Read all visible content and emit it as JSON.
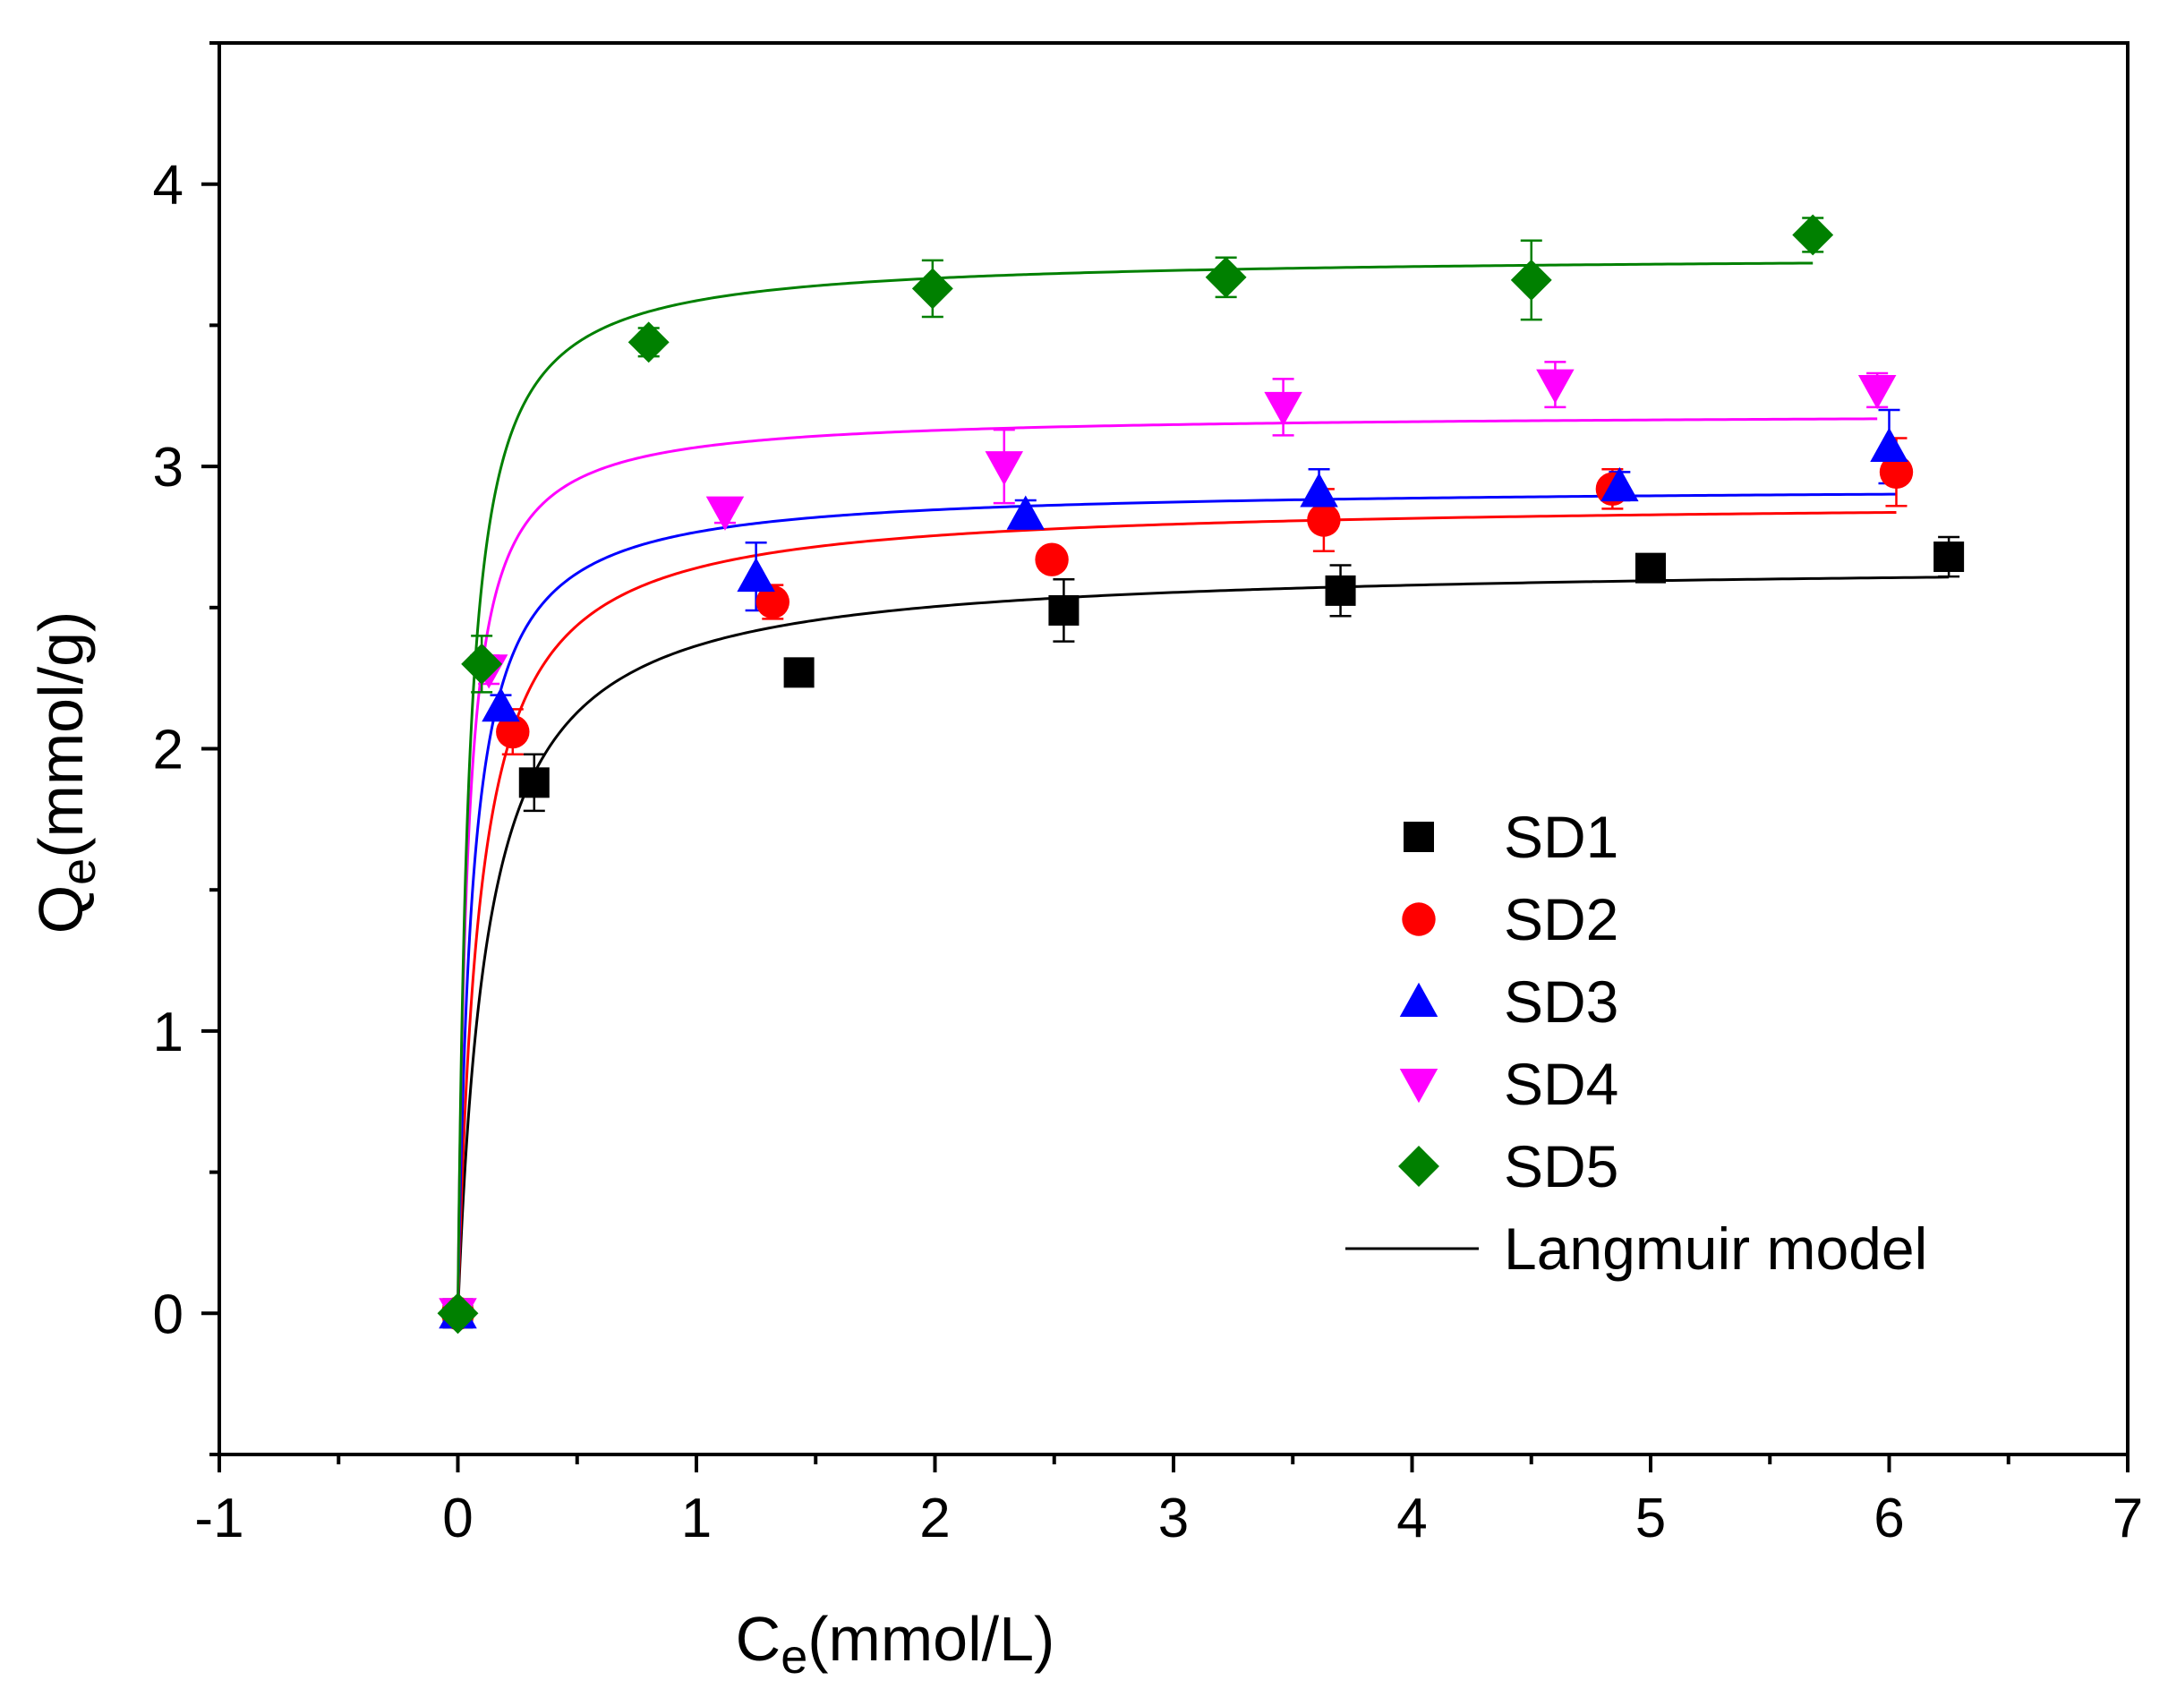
{
  "chart_data": {
    "type": "scatter",
    "xlabel": {
      "main": "C",
      "sub": "e",
      "rest": "(mmol/L)"
    },
    "ylabel": {
      "main": "Q",
      "sub": "e",
      "rest": "(mmol/g)"
    },
    "xlim": [
      -1,
      7
    ],
    "ylim": [
      -0.5,
      4.5
    ],
    "xticks": [
      "-1",
      "0",
      "1",
      "2",
      "3",
      "4",
      "5",
      "6",
      "7"
    ],
    "yticks": [
      "0",
      "1",
      "2",
      "3",
      "4"
    ],
    "legend_position": "right-center",
    "series": [
      {
        "name": "SD1",
        "marker": "square",
        "color": "#000000",
        "points": [
          {
            "x": 0.0,
            "y": 0.0,
            "err": 0.0
          },
          {
            "x": 0.32,
            "y": 1.88,
            "err": 0.1
          },
          {
            "x": 1.43,
            "y": 2.27,
            "err": 0.04
          },
          {
            "x": 2.54,
            "y": 2.49,
            "err": 0.11
          },
          {
            "x": 3.7,
            "y": 2.56,
            "err": 0.09
          },
          {
            "x": 5.0,
            "y": 2.64,
            "err": 0.03
          },
          {
            "x": 6.25,
            "y": 2.68,
            "err": 0.07
          }
        ],
        "fit": {
          "qmax": 2.66,
          "k": 8.0,
          "xmax": 6.25
        }
      },
      {
        "name": "SD2",
        "marker": "circle",
        "color": "#ff0000",
        "points": [
          {
            "x": 0.0,
            "y": 0.0,
            "err": 0.0
          },
          {
            "x": 0.23,
            "y": 2.06,
            "err": 0.08
          },
          {
            "x": 1.32,
            "y": 2.52,
            "err": 0.06
          },
          {
            "x": 2.49,
            "y": 2.67,
            "err": 0.03
          },
          {
            "x": 3.63,
            "y": 2.81,
            "err": 0.11
          },
          {
            "x": 4.84,
            "y": 2.92,
            "err": 0.07
          },
          {
            "x": 6.03,
            "y": 2.98,
            "err": 0.12
          }
        ],
        "fit": {
          "qmax": 2.88,
          "k": 11.0,
          "xmax": 6.03
        }
      },
      {
        "name": "SD3",
        "marker": "triangle-up",
        "color": "#0000ff",
        "points": [
          {
            "x": 0.0,
            "y": 0.0,
            "err": 0.0
          },
          {
            "x": 0.18,
            "y": 2.15,
            "err": 0.04
          },
          {
            "x": 1.25,
            "y": 2.61,
            "err": 0.12
          },
          {
            "x": 2.38,
            "y": 2.83,
            "err": 0.05
          },
          {
            "x": 3.61,
            "y": 2.91,
            "err": 0.08
          },
          {
            "x": 4.87,
            "y": 2.93,
            "err": 0.05
          },
          {
            "x": 6.0,
            "y": 3.07,
            "err": 0.13
          }
        ],
        "fit": {
          "qmax": 2.93,
          "k": 17.0,
          "xmax": 6.03
        }
      },
      {
        "name": "SD4",
        "marker": "triangle-down",
        "color": "#ff00ff",
        "points": [
          {
            "x": 0.0,
            "y": 0.0,
            "err": 0.0
          },
          {
            "x": 0.13,
            "y": 2.28,
            "err": 0.05
          },
          {
            "x": 1.12,
            "y": 2.84,
            "err": 0.04
          },
          {
            "x": 2.29,
            "y": 3.0,
            "err": 0.13
          },
          {
            "x": 3.46,
            "y": 3.21,
            "err": 0.1
          },
          {
            "x": 4.6,
            "y": 3.29,
            "err": 0.08
          },
          {
            "x": 5.95,
            "y": 3.27,
            "err": 0.06
          }
        ],
        "fit": {
          "qmax": 3.19,
          "k": 25.0,
          "xmax": 5.95
        }
      },
      {
        "name": "SD5",
        "marker": "diamond",
        "color": "#008000",
        "points": [
          {
            "x": 0.0,
            "y": 0.0,
            "err": 0.0
          },
          {
            "x": 0.1,
            "y": 2.3,
            "err": 0.1
          },
          {
            "x": 0.8,
            "y": 3.44,
            "err": 0.05
          },
          {
            "x": 1.99,
            "y": 3.63,
            "err": 0.1
          },
          {
            "x": 3.22,
            "y": 3.67,
            "err": 0.07
          },
          {
            "x": 4.5,
            "y": 3.66,
            "err": 0.14
          },
          {
            "x": 5.68,
            "y": 3.82,
            "err": 0.06
          }
        ],
        "fit": {
          "qmax": 3.75,
          "k": 22.0,
          "xmax": 5.68
        }
      }
    ],
    "fit_legend_label": "Langmuir model"
  }
}
